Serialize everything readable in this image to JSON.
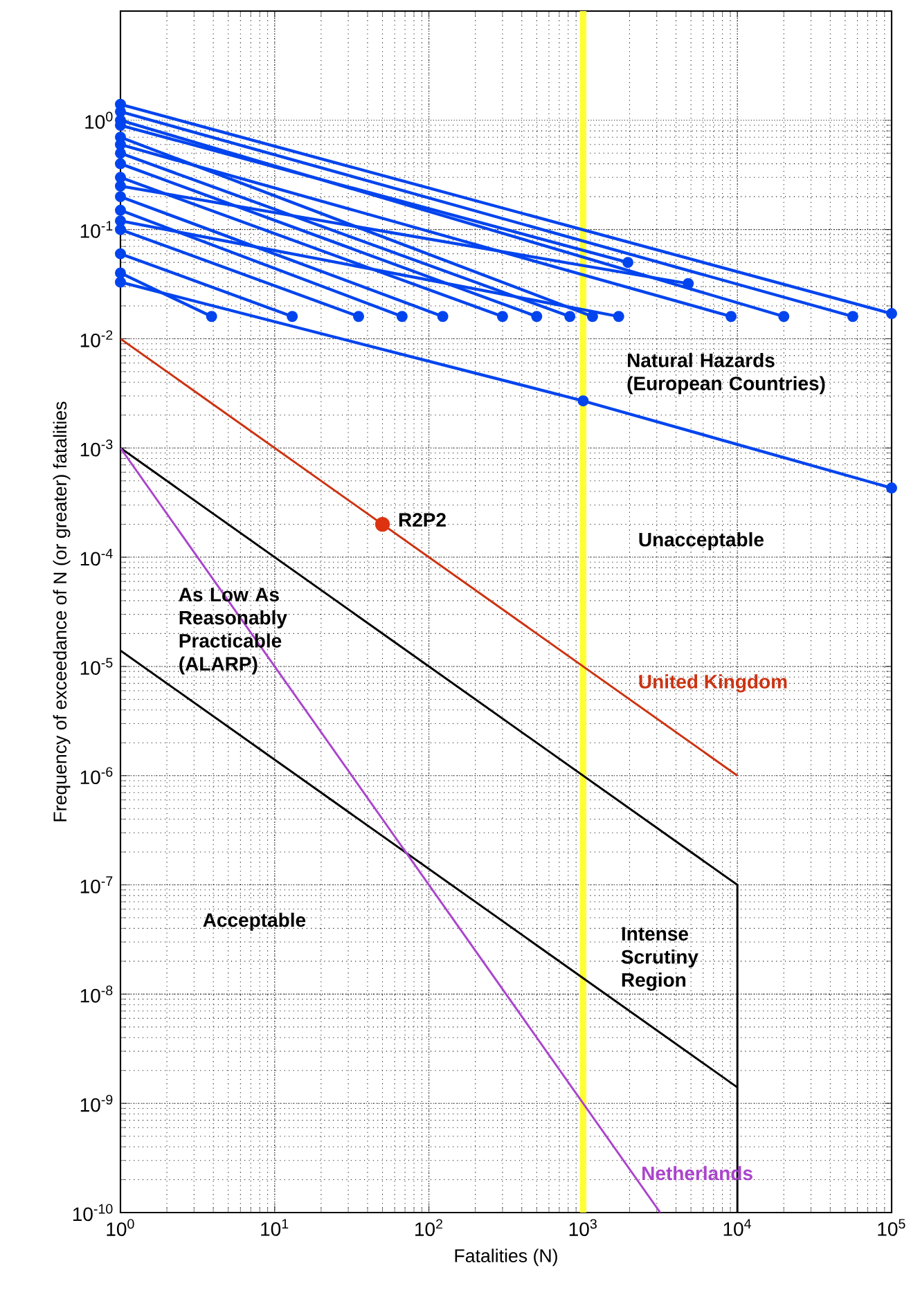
{
  "chart_data": {
    "type": "line",
    "xlabel": "Fatalities (N)",
    "ylabel": "Frequency of exceedance of N (or greater) fatalities",
    "log": "xy",
    "grid": true,
    "xlim": [
      1,
      100000
    ],
    "ylim": [
      1e-10,
      10
    ],
    "xticks": [
      {
        "value": 1,
        "label": "10$^{0}$"
      },
      {
        "value": 10,
        "label": "10$^{1}$"
      },
      {
        "value": 100,
        "label": "10$^{2}$"
      },
      {
        "value": 1000,
        "label": "10$^{3}$"
      },
      {
        "value": 10000,
        "label": "10$^{4}$"
      },
      {
        "value": 100000,
        "label": "10$^{5}$"
      }
    ],
    "yticks": [
      {
        "value": 1e-10,
        "label": "10$^{-10}$"
      },
      {
        "value": 1e-09,
        "label": "10$^{-9}$"
      },
      {
        "value": 1e-08,
        "label": "10$^{-8}$"
      },
      {
        "value": 1e-07,
        "label": "10$^{-7}$"
      },
      {
        "value": 1e-06,
        "label": "10$^{-6}$"
      },
      {
        "value": 1e-05,
        "label": "10$^{-5}$"
      },
      {
        "value": 0.0001,
        "label": "10$^{-4}$"
      },
      {
        "value": 0.001,
        "label": "10$^{-3}$"
      },
      {
        "value": 0.01,
        "label": "10$^{-2}$"
      },
      {
        "value": 0.1,
        "label": "10$^{-1}$"
      },
      {
        "value": 1,
        "label": "10$^{0}$"
      }
    ],
    "ref_lines": [
      {
        "axis": "x",
        "value": 1000,
        "color": "#ffff33"
      }
    ],
    "annotations": [
      "Natural Hazards (European Countries)",
      "Unacceptable",
      "As Low As Reasonably Practicable (ALARP)",
      "Acceptable",
      "Intense Scrutiny Region"
    ],
    "series": [
      {
        "name": "United Kingdom",
        "color": "#cc3311",
        "x": [
          1,
          10000
        ],
        "values": [
          0.01,
          1e-06
        ]
      },
      {
        "color": "#000000",
        "x": [
          1,
          10000,
          10000
        ],
        "values": [
          0.001,
          1e-07,
          1e-10
        ]
      },
      {
        "color": "#000000",
        "x": [
          1,
          10000
        ],
        "values": [
          1.4e-05,
          1.4e-09
        ]
      },
      {
        "name": "Netherlands",
        "color": "#aa44cc",
        "x": [
          1,
          3162
        ],
        "values": [
          0.001,
          1e-10
        ]
      },
      {
        "name": "R2P2",
        "type": "scatter",
        "marker": "circle",
        "color": "#dd3311",
        "x": [
          50
        ],
        "values": [
          0.0002
        ]
      },
      {
        "color": "#0044ee",
        "marker": "circle",
        "x": [
          1,
          100000
        ],
        "values": [
          1.4,
          0.017
        ]
      },
      {
        "color": "#0044ee",
        "marker": "circle",
        "x": [
          1,
          1000,
          100000
        ],
        "values": [
          0.033,
          0.0027,
          0.00043
        ]
      },
      {
        "color": "#0044ee",
        "marker": "circle",
        "x": [
          1,
          3.9
        ],
        "values": [
          0.04,
          0.016
        ]
      },
      {
        "color": "#0044ee",
        "marker": "circle",
        "x": [
          1,
          13
        ],
        "values": [
          0.06,
          0.016
        ]
      },
      {
        "color": "#0044ee",
        "marker": "circle",
        "x": [
          1,
          35
        ],
        "values": [
          0.1,
          0.016
        ]
      },
      {
        "color": "#0044ee",
        "marker": "circle",
        "x": [
          1,
          67
        ],
        "values": [
          0.15,
          0.016
        ]
      },
      {
        "color": "#0044ee",
        "marker": "circle",
        "x": [
          1,
          123
        ],
        "values": [
          0.2,
          0.016
        ]
      },
      {
        "color": "#0044ee",
        "marker": "circle",
        "x": [
          1,
          300
        ],
        "values": [
          0.3,
          0.016
        ]
      },
      {
        "color": "#0044ee",
        "marker": "circle",
        "x": [
          1,
          500
        ],
        "values": [
          0.4,
          0.016
        ]
      },
      {
        "color": "#0044ee",
        "marker": "circle",
        "x": [
          1,
          820
        ],
        "values": [
          0.5,
          0.016
        ]
      },
      {
        "color": "#0044ee",
        "marker": "circle",
        "x": [
          1,
          1150
        ],
        "values": [
          0.7,
          0.016
        ]
      },
      {
        "color": "#0044ee",
        "marker": "circle",
        "x": [
          1,
          1700
        ],
        "values": [
          0.12,
          0.016
        ]
      },
      {
        "color": "#0044ee",
        "marker": "circle",
        "x": [
          1,
          1950
        ],
        "values": [
          0.9,
          0.05
        ]
      },
      {
        "color": "#0044ee",
        "marker": "circle",
        "x": [
          1,
          4800
        ],
        "values": [
          0.25,
          0.032
        ]
      },
      {
        "color": "#0044ee",
        "marker": "circle",
        "x": [
          1,
          9100
        ],
        "values": [
          0.6,
          0.016
        ]
      },
      {
        "color": "#0044ee",
        "marker": "circle",
        "x": [
          1,
          20000
        ],
        "values": [
          1.0,
          0.016
        ]
      },
      {
        "color": "#0044ee",
        "marker": "circle",
        "x": [
          1,
          56000
        ],
        "values": [
          1.2,
          0.016
        ]
      }
    ]
  }
}
